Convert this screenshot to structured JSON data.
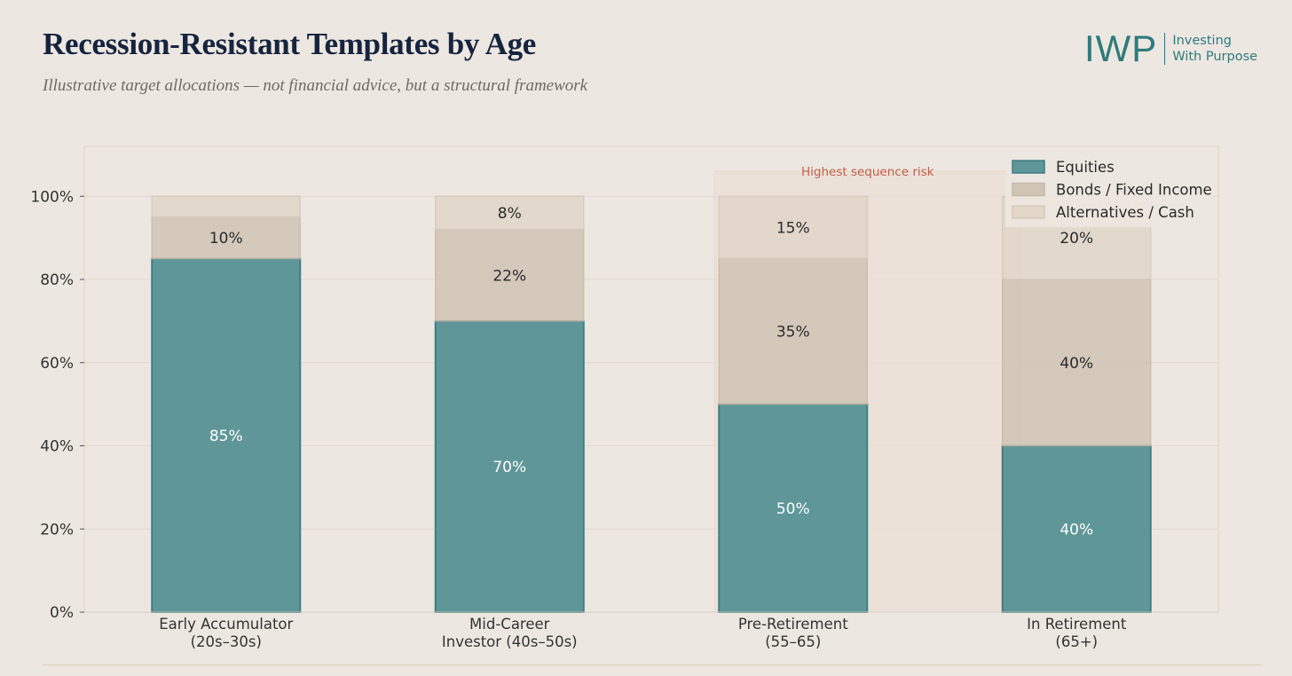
{
  "header": {
    "title": "Recession-Resistant Templates by Age",
    "subtitle": "Illustrative target allocations — not financial advice, but a structural framework"
  },
  "logo": {
    "mark": "IWP",
    "line1": "Investing",
    "line2": "With Purpose"
  },
  "colors": {
    "background": "#ede7e1",
    "equities": "#5f9799",
    "equities_stroke": "#3d7f82",
    "bonds": "#d0c4b5",
    "alternatives": "#e1d6c8",
    "highlight": "#ecdfd6",
    "highlight_label": "#c0604a"
  },
  "chart_data": {
    "type": "bar",
    "stacked": true,
    "categories": [
      [
        "Early Accumulator",
        "(20s–30s)"
      ],
      [
        "Mid-Career",
        "Investor (40s–50s)"
      ],
      [
        "Pre-Retirement",
        "(55–65)"
      ],
      [
        "In Retirement",
        "(65+)"
      ]
    ],
    "series": [
      {
        "name": "Equities",
        "values": [
          85,
          70,
          50,
          40
        ],
        "labels": [
          "85%",
          "70%",
          "50%",
          "40%"
        ],
        "color": "#5f9799"
      },
      {
        "name": "Bonds / Fixed Income",
        "values": [
          10,
          22,
          35,
          40
        ],
        "labels": [
          "10%",
          "22%",
          "35%",
          "40%"
        ],
        "color": "#d0c4b5"
      },
      {
        "name": "Alternatives / Cash",
        "values": [
          5,
          8,
          15,
          20
        ],
        "labels": [
          "",
          "8%",
          "15%",
          "20%"
        ],
        "color": "#e1d6c8"
      }
    ],
    "ylim": [
      0,
      112
    ],
    "yticks": [
      0,
      20,
      40,
      60,
      80,
      100
    ],
    "ytick_labels": [
      "0%",
      "20%",
      "40%",
      "60%",
      "80%",
      "100%"
    ],
    "grid": true,
    "legend": "top-right",
    "annotation": {
      "text": "Highest sequence risk",
      "category_index": 2
    }
  }
}
